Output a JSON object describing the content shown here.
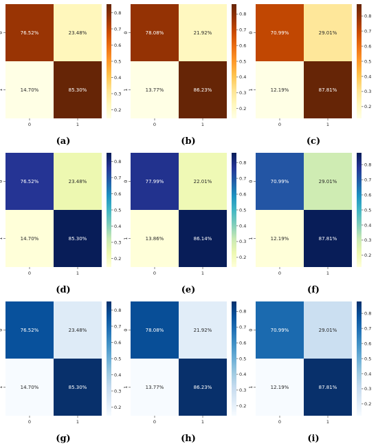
{
  "chart_data": [
    {
      "type": "heatmap",
      "panel_label": "(a)",
      "colormap": "YlOrBr",
      "x_ticks": [
        "0",
        "1"
      ],
      "y_ticks": [
        "0",
        "1"
      ],
      "values": [
        [
          0.7652,
          0.2348
        ],
        [
          0.147,
          0.853
        ]
      ],
      "cell_labels": [
        [
          "76.52%",
          "23.48%"
        ],
        [
          "14.70%",
          "85.30%"
        ]
      ],
      "colorbar_ticks": [
        "0.2",
        "0.3",
        "0.4",
        "0.5",
        "0.6",
        "0.7",
        "0.8"
      ],
      "colorbar_tick_values": [
        0.2,
        0.3,
        0.4,
        0.5,
        0.6,
        0.7,
        0.8
      ],
      "vmin": 0.147,
      "vmax": 0.853
    },
    {
      "type": "heatmap",
      "panel_label": "(b)",
      "colormap": "YlOrBr",
      "x_ticks": [
        "0",
        "1"
      ],
      "y_ticks": [
        "0",
        "1"
      ],
      "values": [
        [
          0.7808,
          0.2192
        ],
        [
          0.1377,
          0.8623
        ]
      ],
      "cell_labels": [
        [
          "78.08%",
          "21.92%"
        ],
        [
          "13.77%",
          "86.23%"
        ]
      ],
      "colorbar_ticks": [
        "0.2",
        "0.3",
        "0.4",
        "0.5",
        "0.6",
        "0.7",
        "0.8"
      ],
      "colorbar_tick_values": [
        0.2,
        0.3,
        0.4,
        0.5,
        0.6,
        0.7,
        0.8
      ],
      "vmin": 0.1377,
      "vmax": 0.8623
    },
    {
      "type": "heatmap",
      "panel_label": "(c)",
      "colormap": "YlOrBr",
      "x_ticks": [
        "0",
        "1"
      ],
      "y_ticks": [
        "0",
        "1"
      ],
      "values": [
        [
          0.7099,
          0.2901
        ],
        [
          0.1219,
          0.8781
        ]
      ],
      "cell_labels": [
        [
          "70.99%",
          "29.01%"
        ],
        [
          "12.19%",
          "87.81%"
        ]
      ],
      "colorbar_ticks": [
        "0.2",
        "0.3",
        "0.4",
        "0.5",
        "0.6",
        "0.7",
        "0.8"
      ],
      "colorbar_tick_values": [
        0.2,
        0.3,
        0.4,
        0.5,
        0.6,
        0.7,
        0.8
      ],
      "vmin": 0.1219,
      "vmax": 0.8781
    },
    {
      "type": "heatmap",
      "panel_label": "(d)",
      "colormap": "YlGnBu",
      "x_ticks": [
        "0",
        "1"
      ],
      "y_ticks": [
        "0",
        "1"
      ],
      "values": [
        [
          0.7652,
          0.2348
        ],
        [
          0.147,
          0.853
        ]
      ],
      "cell_labels": [
        [
          "76.52%",
          "23.48%"
        ],
        [
          "14.70%",
          "85.30%"
        ]
      ],
      "colorbar_ticks": [
        "0.2",
        "0.3",
        "0.4",
        "0.5",
        "0.6",
        "0.7",
        "0.8"
      ],
      "colorbar_tick_values": [
        0.2,
        0.3,
        0.4,
        0.5,
        0.6,
        0.7,
        0.8
      ],
      "vmin": 0.147,
      "vmax": 0.853
    },
    {
      "type": "heatmap",
      "panel_label": "(e)",
      "colormap": "YlGnBu",
      "x_ticks": [
        "0",
        "1"
      ],
      "y_ticks": [
        "0",
        "1"
      ],
      "values": [
        [
          0.7799,
          0.2201
        ],
        [
          0.1386,
          0.8614
        ]
      ],
      "cell_labels": [
        [
          "77.99%",
          "22.01%"
        ],
        [
          "13.86%",
          "86.14%"
        ]
      ],
      "colorbar_ticks": [
        "0.2",
        "0.3",
        "0.4",
        "0.5",
        "0.6",
        "0.7",
        "0.8"
      ],
      "colorbar_tick_values": [
        0.2,
        0.3,
        0.4,
        0.5,
        0.6,
        0.7,
        0.8
      ],
      "vmin": 0.1386,
      "vmax": 0.8614
    },
    {
      "type": "heatmap",
      "panel_label": "(f)",
      "colormap": "YlGnBu",
      "x_ticks": [
        "0",
        "1"
      ],
      "y_ticks": [
        "0",
        "1"
      ],
      "values": [
        [
          0.7099,
          0.2901
        ],
        [
          0.1219,
          0.8781
        ]
      ],
      "cell_labels": [
        [
          "70.99%",
          "29.01%"
        ],
        [
          "12.19%",
          "87.81%"
        ]
      ],
      "colorbar_ticks": [
        "0.2",
        "0.3",
        "0.4",
        "0.5",
        "0.6",
        "0.7",
        "0.8"
      ],
      "colorbar_tick_values": [
        0.2,
        0.3,
        0.4,
        0.5,
        0.6,
        0.7,
        0.8
      ],
      "vmin": 0.1219,
      "vmax": 0.8781
    },
    {
      "type": "heatmap",
      "panel_label": "(g)",
      "colormap": "Blues",
      "x_ticks": [
        "0",
        "1"
      ],
      "y_ticks": [
        "0",
        "1"
      ],
      "values": [
        [
          0.7652,
          0.2348
        ],
        [
          0.147,
          0.853
        ]
      ],
      "cell_labels": [
        [
          "76.52%",
          "23.48%"
        ],
        [
          "14.70%",
          "85.30%"
        ]
      ],
      "colorbar_ticks": [
        "0.2",
        "0.3",
        "0.4",
        "0.5",
        "0.6",
        "0.7",
        "0.8"
      ],
      "colorbar_tick_values": [
        0.2,
        0.3,
        0.4,
        0.5,
        0.6,
        0.7,
        0.8
      ],
      "vmin": 0.147,
      "vmax": 0.853
    },
    {
      "type": "heatmap",
      "panel_label": "(h)",
      "colormap": "Blues",
      "x_ticks": [
        "0",
        "1"
      ],
      "y_ticks": [
        "0",
        "1"
      ],
      "values": [
        [
          0.7808,
          0.2192
        ],
        [
          0.1377,
          0.8623
        ]
      ],
      "cell_labels": [
        [
          "78.08%",
          "21.92%"
        ],
        [
          "13.77%",
          "86.23%"
        ]
      ],
      "colorbar_ticks": [
        "0.2",
        "0.3",
        "0.4",
        "0.5",
        "0.6",
        "0.7",
        "0.8"
      ],
      "colorbar_tick_values": [
        0.2,
        0.3,
        0.4,
        0.5,
        0.6,
        0.7,
        0.8
      ],
      "vmin": 0.1377,
      "vmax": 0.8623
    },
    {
      "type": "heatmap",
      "panel_label": "(i)",
      "colormap": "Blues",
      "x_ticks": [
        "0",
        "1"
      ],
      "y_ticks": [
        "0",
        "1"
      ],
      "values": [
        [
          0.7099,
          0.2901
        ],
        [
          0.1219,
          0.8781
        ]
      ],
      "cell_labels": [
        [
          "70.99%",
          "29.01%"
        ],
        [
          "12.19%",
          "87.81%"
        ]
      ],
      "colorbar_ticks": [
        "0.2",
        "0.3",
        "0.4",
        "0.5",
        "0.6",
        "0.7",
        "0.8"
      ],
      "colorbar_tick_values": [
        0.2,
        0.3,
        0.4,
        0.5,
        0.6,
        0.7,
        0.8
      ],
      "vmin": 0.1219,
      "vmax": 0.8781
    }
  ],
  "colormaps": {
    "YlOrBr": [
      "#ffffe5",
      "#fff7bc",
      "#fee391",
      "#fec44f",
      "#fe9929",
      "#ec7014",
      "#cc4c02",
      "#993404",
      "#662506"
    ],
    "YlGnBu": [
      "#ffffd9",
      "#edf8b1",
      "#c7e9b4",
      "#7fcdbb",
      "#41b6c4",
      "#1d91c0",
      "#225ea8",
      "#253494",
      "#081d58"
    ],
    "Blues": [
      "#f7fbff",
      "#deebf7",
      "#c6dbef",
      "#9ecae1",
      "#6baed6",
      "#4292c6",
      "#2171b5",
      "#08519c",
      "#08306b"
    ]
  }
}
